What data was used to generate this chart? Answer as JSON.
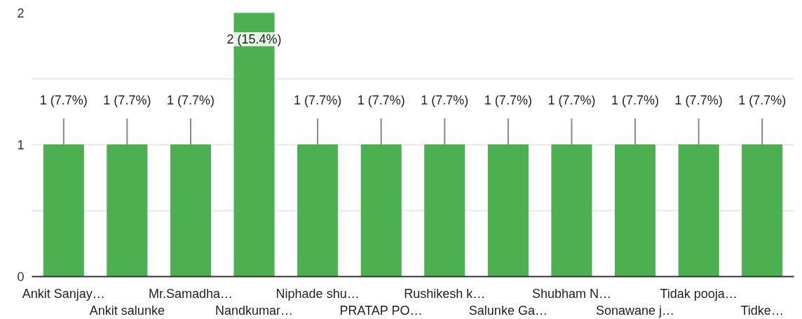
{
  "chart_data": {
    "type": "bar",
    "categories": [
      "Ankit Sanjay…",
      "Ankit salunke",
      "Mr.Samadha…",
      "Nandkumar…",
      "Niphade shu…",
      "PRATAP PO…",
      "Rushikesh k…",
      "Salunke Ga…",
      "Shubham N…",
      "Sonawane j…",
      "Tidak pooja…",
      "Tidke…"
    ],
    "values": [
      1,
      1,
      1,
      2,
      1,
      1,
      1,
      1,
      1,
      1,
      1,
      1
    ],
    "value_labels": [
      "1 (7.7%)",
      "1 (7.7%)",
      "1 (7.7%)",
      "2 (15.4%)",
      "1 (7.7%)",
      "1 (7.7%)",
      "1 (7.7%)",
      "1 (7.7%)",
      "1 (7.7%)",
      "1 (7.7%)",
      "1 (7.7%)",
      "1 (7.7%)"
    ],
    "color": "#4caf50",
    "ylim": [
      0,
      2
    ],
    "yticks": [
      0,
      {
        "value": 0.5,
        "label": null
      },
      1,
      {
        "value": 1.5,
        "label": null
      },
      2
    ],
    "grid": "y"
  }
}
